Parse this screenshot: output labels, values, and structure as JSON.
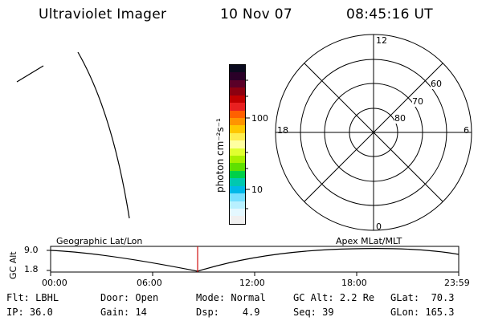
{
  "header": {
    "title": "Ultraviolet Imager",
    "date": "10 Nov 07",
    "time": "08:45:16 UT"
  },
  "colorbar": {
    "unit_label": "photon cm⁻²s⁻¹",
    "tick_labels": [
      "100",
      "10"
    ],
    "colors": [
      "#0a0a1e",
      "#2a0028",
      "#5a0028",
      "#8c0010",
      "#c00000",
      "#e82020",
      "#ff6000",
      "#ff9400",
      "#ffc800",
      "#ffee50",
      "#ffffa0",
      "#e0ff30",
      "#a8f000",
      "#60e000",
      "#00d048",
      "#00c8b0",
      "#00b8e8",
      "#78e0ff",
      "#b8f0ff",
      "#e4f8ff",
      "#f0f0f0"
    ]
  },
  "polar_plot": {
    "radial_labels": [
      "60",
      "70",
      "80"
    ],
    "mlt_labels": {
      "top": "12",
      "bottom": "0",
      "left": "18",
      "right": "6"
    }
  },
  "timeline": {
    "y_axis_label": "GC Alt",
    "y_max_label": "9.0",
    "y_min_label": "1.8",
    "left_caption": "Geographic Lat/Lon",
    "right_caption": "Apex MLat/MLT",
    "x_ticks": [
      "00:00",
      "06:00",
      "12:00",
      "18:00",
      "23:59"
    ],
    "marker_color": "#d01010",
    "marker_time": "08:45"
  },
  "status": {
    "col1": [
      {
        "label": "Flt:",
        "value": "LBHL"
      },
      {
        "label": "IP:",
        "value": "36.0"
      }
    ],
    "col2": [
      {
        "label": "Door:",
        "value": "Open"
      },
      {
        "label": "Gain:",
        "value": "14"
      }
    ],
    "col3": [
      {
        "label": "Mode:",
        "value": "Normal"
      },
      {
        "label": "Dsp:",
        "value": "4.9"
      }
    ],
    "col4": [
      {
        "label": "GC Alt:",
        "value": "2.2 Re"
      },
      {
        "label": "Seq:",
        "value": "39"
      }
    ],
    "col5": [
      {
        "label": "GLat:",
        "value": "70.3"
      },
      {
        "label": "GLon:",
        "value": "165.3"
      }
    ]
  }
}
